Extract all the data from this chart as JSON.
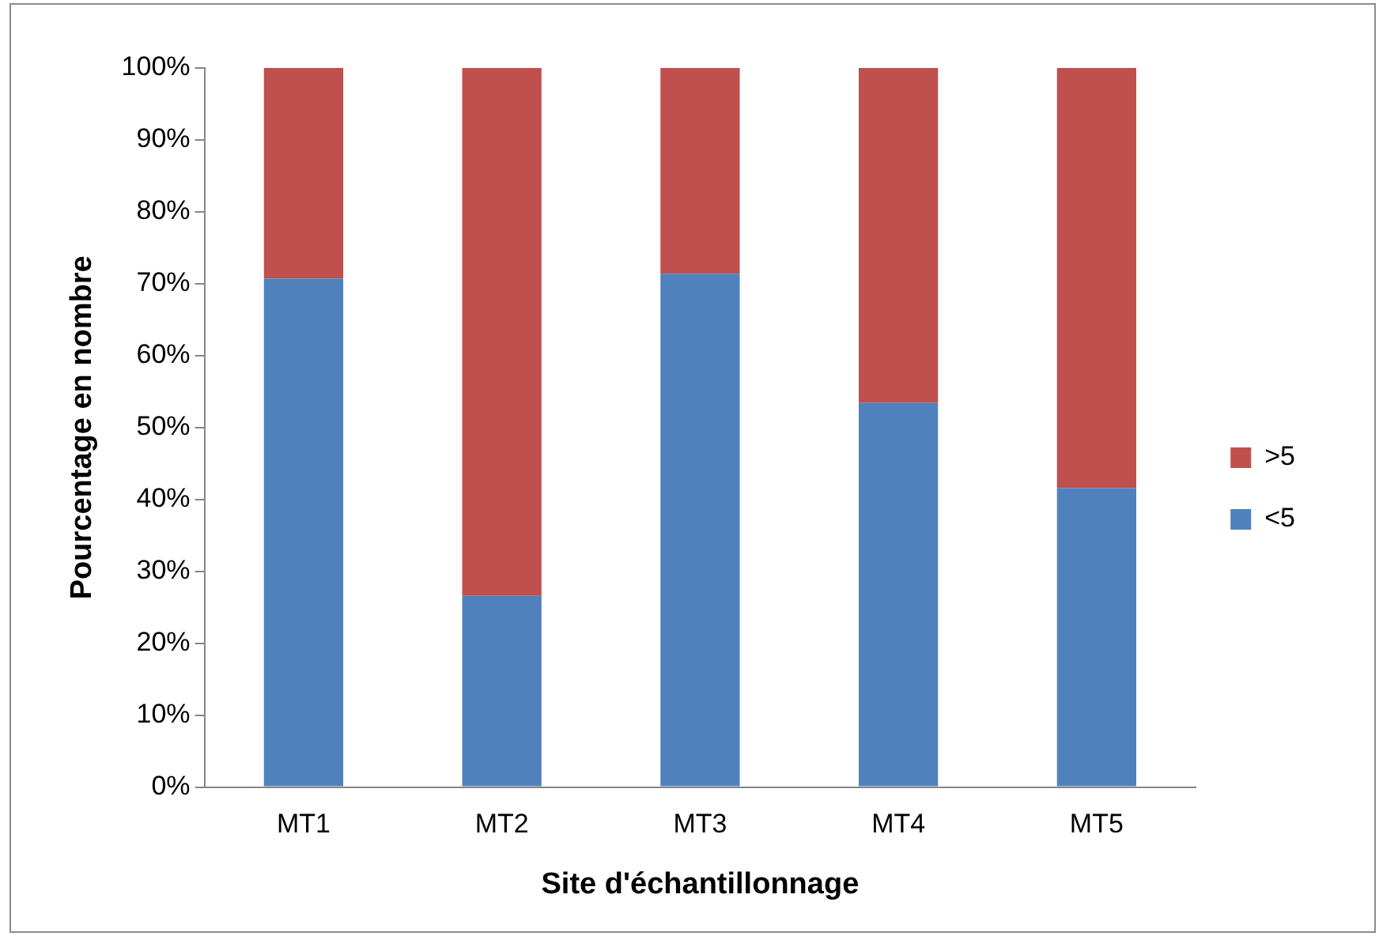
{
  "chart_data": {
    "type": "bar",
    "stacked": true,
    "xlabel": "Site d'échantillonnage",
    "ylabel": "Pourcentage en nombre",
    "categories": [
      "MT1",
      "MT2",
      "MT3",
      "MT4",
      "MT5"
    ],
    "series": [
      {
        "name": "<5",
        "color": "#4f81bd",
        "values": [
          70.7,
          26.6,
          71.4,
          53.4,
          41.6
        ]
      },
      {
        "name": ">5",
        "color": "#c0504d",
        "values": [
          29.3,
          73.4,
          28.6,
          46.6,
          58.4
        ]
      }
    ],
    "ylim": [
      0,
      100
    ],
    "yticks": [
      {
        "value": 0,
        "label": "0%"
      },
      {
        "value": 10,
        "label": "10%"
      },
      {
        "value": 20,
        "label": "20%"
      },
      {
        "value": 30,
        "label": "30%"
      },
      {
        "value": 40,
        "label": "40%"
      },
      {
        "value": 50,
        "label": "50%"
      },
      {
        "value": 60,
        "label": "60%"
      },
      {
        "value": 70,
        "label": "70%"
      },
      {
        "value": 80,
        "label": "80%"
      },
      {
        "value": 90,
        "label": "90%"
      },
      {
        "value": 100,
        "label": "100%"
      }
    ],
    "grid": false,
    "legend": "right"
  }
}
